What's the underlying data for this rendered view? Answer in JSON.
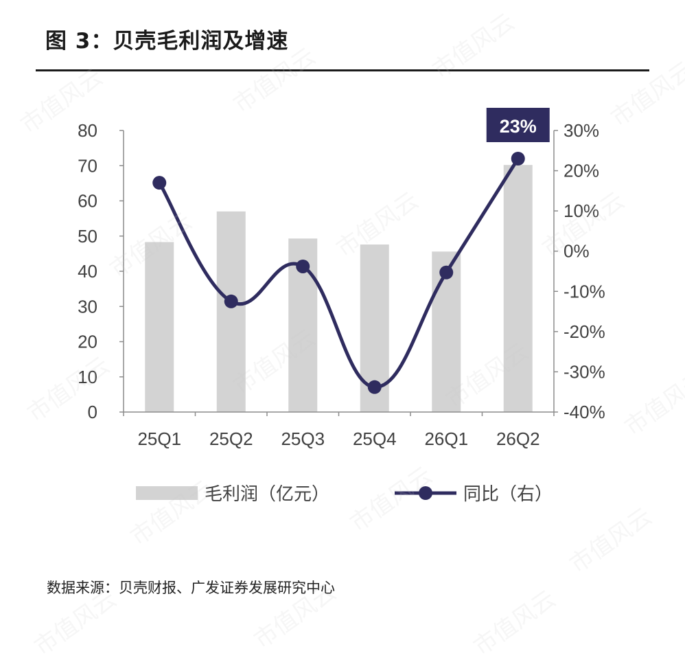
{
  "figure": {
    "title": "图 3：贝壳毛利润及增速",
    "source": "数据来源：贝壳财报、广发证券发展研究中心",
    "watermark": "市值风云"
  },
  "chart_data": {
    "type": "bar",
    "categories": [
      "25Q1",
      "25Q2",
      "25Q3",
      "25Q4",
      "26Q1",
      "26Q2"
    ],
    "series": [
      {
        "name": "毛利润（亿元）",
        "type": "bar",
        "axis": "left",
        "values": [
          48.3,
          57.0,
          49.3,
          47.6,
          45.6,
          70.2
        ]
      },
      {
        "name": "同比（右）",
        "type": "line",
        "axis": "right",
        "values": [
          17,
          -12.5,
          -3.8,
          -33.8,
          -5.3,
          23
        ]
      }
    ],
    "y_left": {
      "min": 0,
      "max": 80,
      "ticks": [
        0,
        10,
        20,
        30,
        40,
        50,
        60,
        70,
        80
      ]
    },
    "y_right": {
      "min": -40,
      "max": 30,
      "ticks": [
        "-40%",
        "-30%",
        "-20%",
        "-10%",
        "0%",
        "10%",
        "20%",
        "30%"
      ]
    },
    "annotation": {
      "label": "23%",
      "category": "26Q2"
    },
    "legend": {
      "placement": "bottom"
    },
    "grid": false,
    "colors": {
      "bar": "#d3d3d3",
      "line": "#2f2c5f",
      "axis": "#8c8c8c",
      "annotation_bg": "#2f2c5f",
      "annotation_text": "#ffffff"
    }
  }
}
